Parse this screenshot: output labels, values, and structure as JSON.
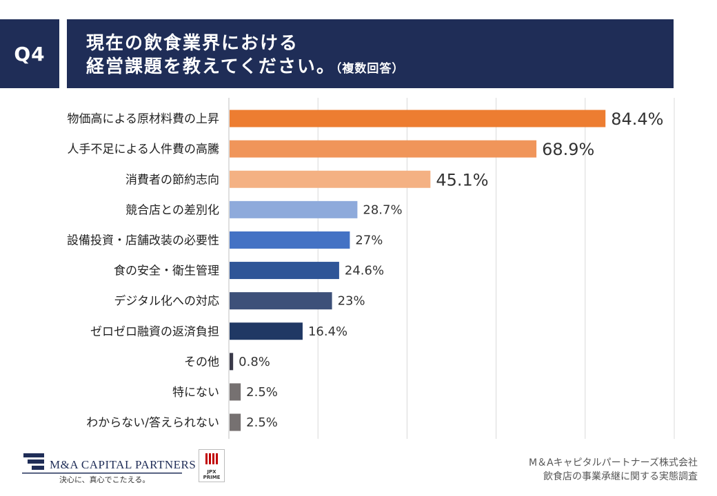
{
  "question_label": "Q4",
  "title": {
    "line1": "現在の飲食業界における",
    "line2": "経営課題を教えてください。",
    "note": "（複数回答）"
  },
  "chart_data": {
    "type": "bar",
    "orientation": "horizontal",
    "categories": [
      "物価高による原材料費の上昇",
      "人手不足による人件費の高騰",
      "消費者の節約志向",
      "競合店との差別化",
      "設備投資・店舗改装の必要性",
      "食の安全・衛生管理",
      "デジタル化への対応",
      "ゼロゼロ融資の返済負担",
      "その他",
      "特にない",
      "わからない/答えられない"
    ],
    "values": [
      84.4,
      68.9,
      45.1,
      28.7,
      27,
      24.6,
      23,
      16.4,
      0.8,
      2.5,
      2.5
    ],
    "value_labels": [
      "84.4%",
      "68.9%",
      "45.1%",
      "28.7%",
      "27%",
      "24.6%",
      "23%",
      "16.4%",
      "0.8%",
      "2.5%",
      "2.5%"
    ],
    "colors": [
      "#ed7d31",
      "#f0955a",
      "#f4b183",
      "#8eaadb",
      "#4472c4",
      "#2f5597",
      "#3d5079",
      "#203864",
      "#3a3a4a",
      "#767171",
      "#767171"
    ],
    "xlim": [
      0,
      100
    ],
    "grid": true
  },
  "footer": {
    "brand": "M&A CAPITAL PARTNERS",
    "tagline": "決心に、真心でこたえる。",
    "jpx_line1": "JPX",
    "jpx_line2": "PRIME",
    "company": "M＆Aキャピタルパートナーズ株式会社",
    "survey": "飲食店の事業承継に関する実態調査"
  }
}
